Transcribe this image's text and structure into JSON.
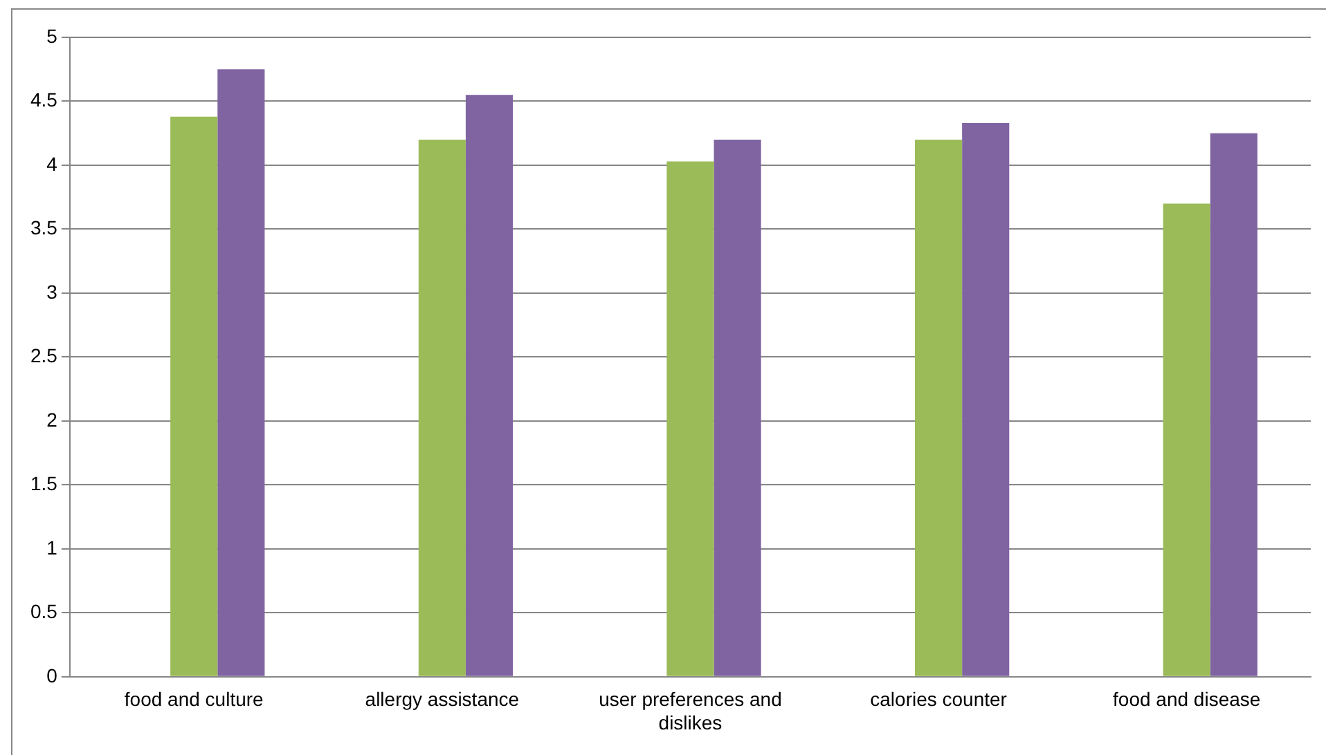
{
  "chart_data": {
    "type": "bar",
    "categories": [
      "food and culture",
      "allergy assistance",
      "user preferences and dislikes",
      "calories counter",
      "food and disease"
    ],
    "series": [
      {
        "values": [
          null,
          null,
          null,
          null,
          null
        ]
      },
      {
        "color": "#9bbb59",
        "values": [
          4.38,
          4.2,
          4.03,
          4.2,
          3.7
        ]
      },
      {
        "color": "#8064a2",
        "values": [
          4.75,
          4.55,
          4.2,
          4.33,
          4.25
        ]
      }
    ],
    "ylim": [
      0,
      5
    ],
    "yticks": [
      0,
      0.5,
      1,
      1.5,
      2,
      2.5,
      3,
      3.5,
      4,
      4.5,
      5
    ],
    "grid": "y",
    "legend": false
  }
}
